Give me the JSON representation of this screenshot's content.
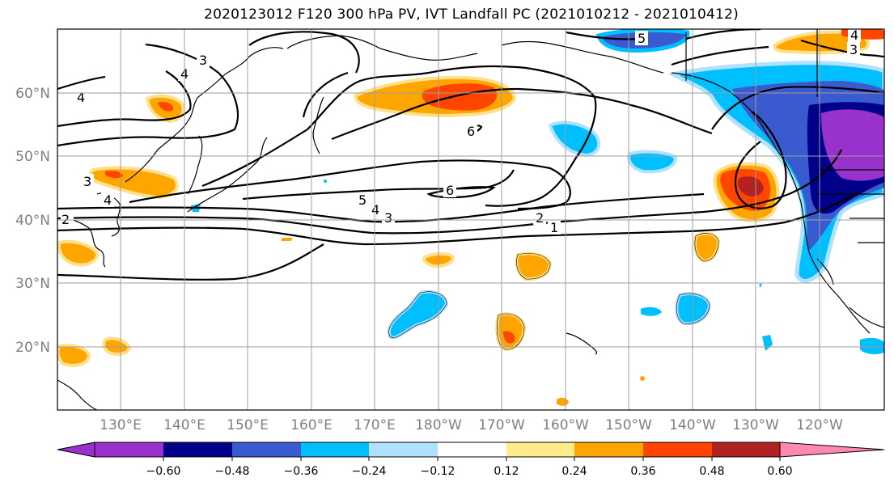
{
  "title": "2020123012 F120 300 hPa PV, IVT Landfall PC (2021010212 - 2021010412)",
  "lon_labels": [
    "130°E",
    "140°E",
    "150°E",
    "160°E",
    "170°E",
    "180°W",
    "170°W",
    "160°W",
    "150°W",
    "140°W",
    "130°W",
    "120°W"
  ],
  "lat_labels": [
    "60°N",
    "50°N",
    "40°N",
    "30°N",
    "20°N"
  ],
  "colorbar": {
    "colors": [
      "#9932cc",
      "#00008b",
      "#3a5bcf",
      "#00bfff",
      "#b0e2ff",
      "#ffffff",
      "#ffeb8a",
      "#ffa500",
      "#ff4500",
      "#b22222",
      "#ff88b0"
    ],
    "ticks": [
      "−0.60",
      "−0.48",
      "−0.36",
      "−0.24",
      "−0.12",
      "0.12",
      "0.24",
      "0.36",
      "0.48",
      "0.60"
    ]
  },
  "contour_labels": [
    "4",
    "3",
    "4",
    "3",
    "4",
    "2",
    "6",
    "6",
    "5",
    "4",
    "3",
    "2",
    "1",
    "5",
    "4",
    "3"
  ]
}
